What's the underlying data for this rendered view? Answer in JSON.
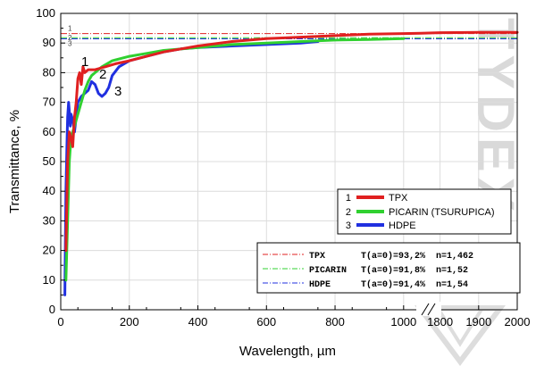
{
  "chart_data": {
    "type": "line",
    "xlabel": "Wavelength, µm",
    "ylabel": "Transmittance, %",
    "ylim": [
      0,
      100
    ],
    "xlim_segment1": [
      0,
      1050
    ],
    "xlim_segment2": [
      1750,
      2000
    ],
    "x_axis_break": true,
    "x_ticks": [
      "0",
      "200",
      "400",
      "600",
      "800",
      "1000",
      "1800",
      "1900",
      "2000"
    ],
    "y_ticks": [
      "0",
      "10",
      "20",
      "30",
      "40",
      "50",
      "60",
      "70",
      "80",
      "90",
      "100"
    ],
    "grid": true,
    "series": [
      {
        "name": "TPX",
        "number": "1",
        "color": "#e02020",
        "x": [
          15,
          20,
          25,
          30,
          35,
          40,
          45,
          50,
          55,
          60,
          65,
          70,
          80,
          100,
          130,
          160,
          200,
          250,
          300,
          400,
          500,
          600,
          700,
          800,
          900,
          1000,
          1050,
          1800,
          1900,
          2000
        ],
        "y": [
          20,
          50,
          60,
          58,
          55,
          65,
          70,
          78,
          80,
          76,
          82,
          80,
          81,
          81,
          82,
          83,
          84,
          85.5,
          87,
          89,
          90.5,
          91.5,
          92,
          92.5,
          93,
          93.2,
          93.3,
          93.5,
          93.6,
          93.6
        ]
      },
      {
        "name": "PICARIN (TSURUPICA)",
        "number": "2",
        "color": "#30d030",
        "x": [
          15,
          20,
          25,
          30,
          35,
          40,
          50,
          60,
          70,
          80,
          90,
          100,
          120,
          150,
          200,
          250,
          300,
          400,
          500,
          600,
          700,
          800,
          900,
          1000
        ],
        "y": [
          10,
          30,
          50,
          58,
          60,
          62,
          66,
          70,
          74,
          77,
          79,
          80,
          82,
          84,
          85.5,
          86.5,
          87.5,
          88.5,
          89.5,
          90,
          90.5,
          91,
          91.2,
          91.5
        ]
      },
      {
        "name": "HDPE",
        "number": "3",
        "color": "#2030e0",
        "x": [
          12,
          15,
          18,
          20,
          23,
          25,
          28,
          30,
          35,
          40,
          50,
          60,
          70,
          80,
          90,
          100,
          110,
          120,
          130,
          140,
          150,
          170,
          200,
          250,
          300,
          350,
          400,
          500,
          600,
          700,
          750
        ],
        "y": [
          5,
          40,
          55,
          65,
          70,
          67,
          62,
          66,
          64,
          60,
          70,
          72,
          73,
          74,
          77,
          76,
          73,
          72,
          73,
          75,
          79,
          82,
          84,
          85.5,
          87,
          88,
          88.5,
          89,
          89.5,
          90,
          90.5
        ]
      }
    ],
    "reference_lines": [
      {
        "number": "1",
        "name": "TPX",
        "value": 93.2,
        "color": "#e02020",
        "label_name": "TPX",
        "label_t": "T(a=0)=93,2%",
        "label_n": "n=1,462"
      },
      {
        "number": "2",
        "name": "PICARIN",
        "value": 91.8,
        "color": "#30d030",
        "label_name": "PICARIN",
        "label_t": "T(a=0)=91,8%",
        "label_n": "n=1,52"
      },
      {
        "number": "3",
        "name": "HDPE",
        "value": 91.4,
        "color": "#2030e0",
        "label_name": "HDPE",
        "label_t": "T(a=0)=91,4%",
        "label_n": "n=1,54"
      }
    ],
    "legend_placement": "right-middle",
    "watermark": "TYDEX"
  }
}
